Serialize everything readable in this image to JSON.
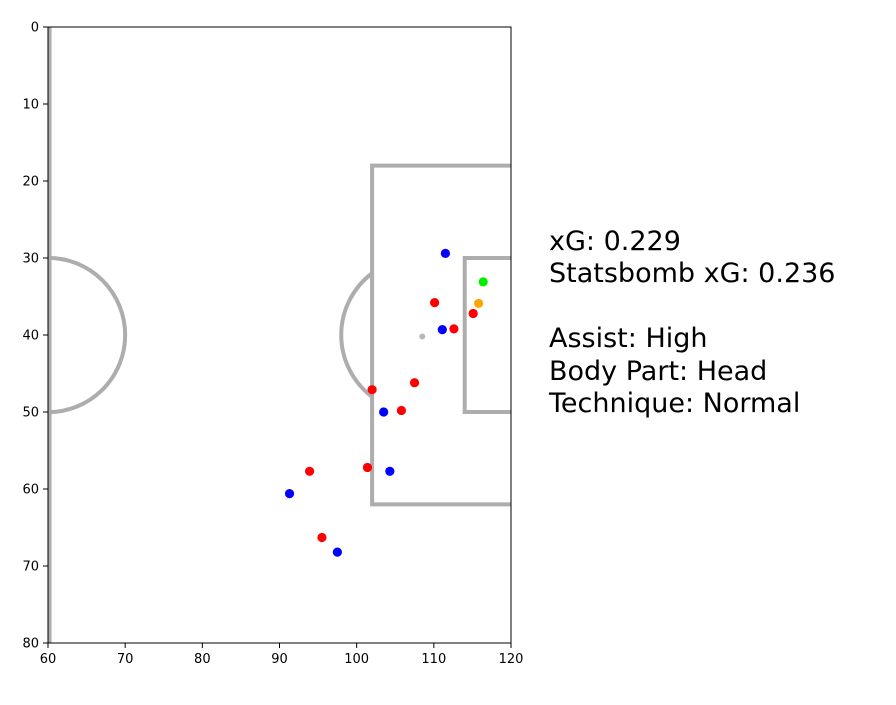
{
  "chart_data": {
    "type": "scatter",
    "title": "",
    "xlabel": "",
    "ylabel": "",
    "xlim": [
      60,
      120
    ],
    "ylim": [
      80,
      0
    ],
    "y_inverted": true,
    "grid": false,
    "background": "football-pitch-half",
    "x_ticks": [
      60,
      70,
      80,
      90,
      100,
      110,
      120
    ],
    "y_ticks": [
      0,
      10,
      20,
      30,
      40,
      50,
      60,
      70,
      80
    ],
    "x_tick_labels": [
      "60",
      "70",
      "80",
      "90",
      "100",
      "110",
      "120"
    ],
    "y_tick_labels": [
      "0",
      "10",
      "20",
      "30",
      "40",
      "50",
      "60",
      "70",
      "80"
    ],
    "series": [
      {
        "color": "#0000ff",
        "points": [
          {
            "x": 111.5,
            "y": 29.4
          },
          {
            "x": 111.1,
            "y": 39.3
          },
          {
            "x": 103.5,
            "y": 50.0
          },
          {
            "x": 104.3,
            "y": 57.7
          },
          {
            "x": 91.3,
            "y": 60.6
          },
          {
            "x": 97.5,
            "y": 68.2
          }
        ]
      },
      {
        "color": "#ff0000",
        "points": [
          {
            "x": 110.1,
            "y": 35.8
          },
          {
            "x": 112.6,
            "y": 39.2
          },
          {
            "x": 115.1,
            "y": 37.2
          },
          {
            "x": 102.0,
            "y": 47.1
          },
          {
            "x": 107.5,
            "y": 46.2
          },
          {
            "x": 105.8,
            "y": 49.8
          },
          {
            "x": 93.9,
            "y": 57.7
          },
          {
            "x": 101.4,
            "y": 57.2
          },
          {
            "x": 95.5,
            "y": 66.3
          }
        ]
      },
      {
        "color": "#ffa500",
        "points": [
          {
            "x": 115.8,
            "y": 35.9
          }
        ]
      },
      {
        "color": "#00ee00",
        "points": [
          {
            "x": 116.4,
            "y": 33.1
          }
        ]
      }
    ],
    "annotations": [
      "xG: 0.229",
      "Statsbomb xG: 0.236",
      "",
      "Assist: High",
      "Body Part: Head",
      "Technique: Normal"
    ]
  }
}
